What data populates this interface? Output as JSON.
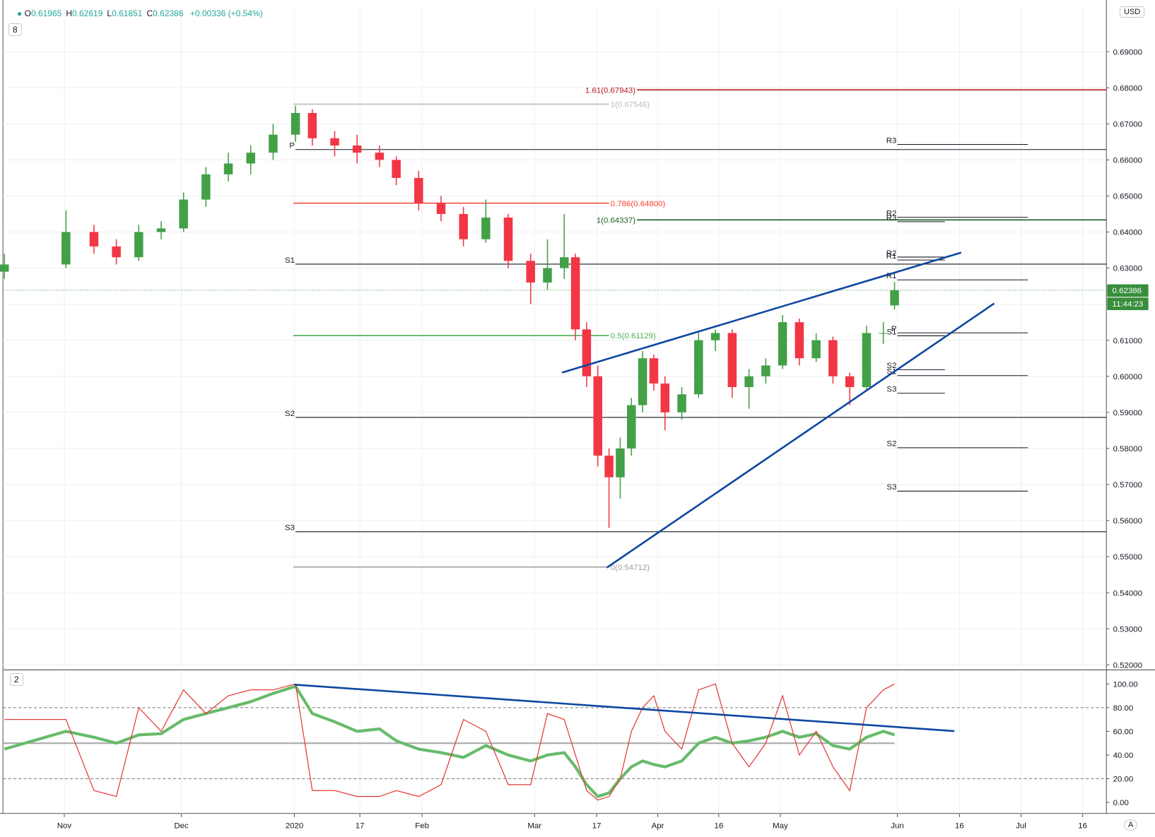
{
  "header": {
    "ohlc": [
      {
        "label": "O",
        "value": 0.61965
      },
      {
        "label": "H",
        "value": 0.62619
      },
      {
        "label": "L",
        "value": 0.61851
      },
      {
        "label": "C",
        "value": 0.62386
      }
    ],
    "change": "+0.00336 (+0.54%)",
    "main_badge": "8",
    "osc_badge": "2",
    "currency": "USD",
    "auto": "A"
  },
  "chart_data": [
    {
      "type": "candlestick",
      "x": [
        0,
        11,
        16,
        20,
        24,
        28,
        32,
        36,
        40,
        44,
        48,
        52,
        55,
        59,
        63,
        67,
        70,
        74,
        78,
        82,
        86,
        90,
        94,
        97,
        100,
        102,
        104,
        106,
        108,
        110,
        112,
        114,
        116,
        118,
        121,
        124,
        127,
        130,
        133,
        136,
        139,
        142,
        145,
        148,
        151,
        154,
        157,
        159
      ],
      "open": [
        0.629,
        0.631,
        0.64,
        0.636,
        0.633,
        0.64,
        0.641,
        0.649,
        0.656,
        0.659,
        0.662,
        0.667,
        0.673,
        0.666,
        0.664,
        0.662,
        0.66,
        0.655,
        0.648,
        0.645,
        0.638,
        0.644,
        0.632,
        0.626,
        0.63,
        0.633,
        0.613,
        0.6,
        0.578,
        0.572,
        0.58,
        0.592,
        0.605,
        0.598,
        0.59,
        0.595,
        0.61,
        0.612,
        0.597,
        0.6,
        0.603,
        0.615,
        0.605,
        0.61,
        0.6,
        0.597,
        0.612,
        0.61965
      ],
      "high": [
        0.634,
        0.646,
        0.642,
        0.638,
        0.642,
        0.643,
        0.651,
        0.658,
        0.662,
        0.664,
        0.67,
        0.675,
        0.674,
        0.668,
        0.667,
        0.664,
        0.661,
        0.657,
        0.65,
        0.647,
        0.649,
        0.645,
        0.634,
        0.638,
        0.645,
        0.634,
        0.615,
        0.603,
        0.58,
        0.583,
        0.594,
        0.607,
        0.606,
        0.6,
        0.597,
        0.612,
        0.613,
        0.613,
        0.602,
        0.605,
        0.617,
        0.616,
        0.612,
        0.611,
        0.601,
        0.614,
        0.615,
        0.62619
      ],
      "low": [
        0.627,
        0.63,
        0.634,
        0.631,
        0.632,
        0.638,
        0.64,
        0.647,
        0.654,
        0.656,
        0.66,
        0.665,
        0.664,
        0.661,
        0.659,
        0.658,
        0.653,
        0.646,
        0.643,
        0.636,
        0.637,
        0.63,
        0.62,
        0.624,
        0.627,
        0.61,
        0.597,
        0.575,
        0.558,
        0.566,
        0.578,
        0.59,
        0.596,
        0.585,
        0.588,
        0.594,
        0.607,
        0.594,
        0.591,
        0.598,
        0.602,
        0.603,
        0.604,
        0.598,
        0.592,
        0.596,
        0.609,
        0.61851
      ],
      "close": [
        0.631,
        0.64,
        0.636,
        0.633,
        0.64,
        0.641,
        0.649,
        0.656,
        0.659,
        0.662,
        0.667,
        0.673,
        0.666,
        0.664,
        0.662,
        0.66,
        0.655,
        0.648,
        0.645,
        0.638,
        0.644,
        0.632,
        0.626,
        0.63,
        0.633,
        0.613,
        0.6,
        0.578,
        0.572,
        0.58,
        0.592,
        0.605,
        0.598,
        0.59,
        0.595,
        0.61,
        0.612,
        0.597,
        0.6,
        0.603,
        0.615,
        0.605,
        0.61,
        0.6,
        0.597,
        0.612,
        0.612,
        0.62386
      ],
      "up_color": "#43a047",
      "down_color": "#f23645",
      "xlim": [
        -0.26,
        196.84
      ],
      "ylim": [
        0.519,
        0.7027
      ],
      "yticks": [
        {
          "value": 0.52,
          "label": "0.52000"
        },
        {
          "value": 0.53,
          "label": "0.53000"
        },
        {
          "value": 0.54,
          "label": "0.54000"
        },
        {
          "value": 0.55,
          "label": "0.55000"
        },
        {
          "value": 0.56,
          "label": "0.56000"
        },
        {
          "value": 0.57,
          "label": "0.57000"
        },
        {
          "value": 0.58,
          "label": "0.58000"
        },
        {
          "value": 0.59,
          "label": "0.59000"
        },
        {
          "value": 0.6,
          "label": "0.60000"
        },
        {
          "value": 0.61,
          "label": "0.61000"
        },
        {
          "value": 0.62,
          "label": "0.62000"
        },
        {
          "value": 0.63,
          "label": "0.63000"
        },
        {
          "value": 0.64,
          "label": "0.64000"
        },
        {
          "value": 0.65,
          "label": "0.65000"
        },
        {
          "value": 0.66,
          "label": "0.66000"
        },
        {
          "value": 0.67,
          "label": "0.67000"
        },
        {
          "value": 0.68,
          "label": "0.68000"
        },
        {
          "value": 0.69,
          "label": "0.69000"
        }
      ],
      "xticks": [
        {
          "value": 10.7,
          "label": "Nov"
        },
        {
          "value": 31.6,
          "label": "Dec"
        },
        {
          "value": 51.8,
          "label": "2020"
        },
        {
          "value": 63.5,
          "label": "17"
        },
        {
          "value": 74.6,
          "label": "Feb"
        },
        {
          "value": 94.7,
          "label": "Mar"
        },
        {
          "value": 105.8,
          "label": "17"
        },
        {
          "value": 116.7,
          "label": "Apr"
        },
        {
          "value": 127.6,
          "label": "16"
        },
        {
          "value": 138.6,
          "label": "May"
        },
        {
          "value": 159.5,
          "label": "Jun"
        },
        {
          "value": 170.6,
          "label": "16"
        },
        {
          "value": 181.6,
          "label": "Jul"
        },
        {
          "value": 192.6,
          "label": "16"
        }
      ],
      "grid": true,
      "last_price": 0.62386,
      "last_price_color": "#388e3c",
      "countdown": "11:44:23",
      "levels": [
        {
          "label": "1.61(0.67943)",
          "value": 0.67943,
          "from": 113,
          "to": 196.84,
          "color": "#b71c1c"
        },
        {
          "label": "1(0.67546)",
          "value": 0.67546,
          "from": 51.6,
          "to": 108,
          "color": "#bdbdbd"
        },
        {
          "label": "0.786(0.64800)",
          "value": 0.648,
          "from": 51.6,
          "to": 108,
          "color": "#f44336"
        },
        {
          "label": "1(0.64337)",
          "value": 0.64337,
          "from": 113,
          "to": 196.84,
          "color": "#1b5e20"
        },
        {
          "label": "0.5(0.61129)",
          "value": 0.61129,
          "from": 51.6,
          "to": 108,
          "color": "#4caf50"
        },
        {
          "label": "0(0.54712)",
          "value": 0.54712,
          "from": 51.6,
          "to": 108,
          "color": "#9e9e9e"
        }
      ],
      "pivots": [
        {
          "from": 52,
          "to": 196.84,
          "levels": [
            {
              "label": "P",
              "value": 0.66286
            },
            {
              "label": "S1",
              "value": 0.6311
            },
            {
              "label": "S2",
              "value": 0.5886
            },
            {
              "label": "S3",
              "value": 0.5569
            }
          ]
        },
        {
          "from": 159.5,
          "to": 182.8,
          "levels": [
            {
              "label": "R3",
              "value": 0.66429
            },
            {
              "label": "R2",
              "value": 0.64408
            },
            {
              "label": "R1",
              "value": 0.62673
            },
            {
              "label": "P",
              "value": 0.61204
            },
            {
              "label": "S1",
              "value": 0.6002
            },
            {
              "label": "S2",
              "value": 0.5802
            },
            {
              "label": "S3",
              "value": 0.56816
            }
          ]
        },
        {
          "from": 159.5,
          "to": 168,
          "levels": [
            {
              "label": "R3",
              "value": 0.64286
            },
            {
              "label": "R2",
              "value": 0.63306
            },
            {
              "label": "R1",
              "value": 0.63224
            },
            {
              "label": "S1",
              "value": 0.61122
            },
            {
              "label": "S2",
              "value": 0.60184
            },
            {
              "label": "S3",
              "value": 0.5953
            }
          ]
        }
      ],
      "pivot_color": "#131722",
      "trendlines": [
        {
          "x": [
            99.6,
            170.9
          ],
          "y": [
            0.60102,
            0.63429
          ],
          "color": "#0d47a1"
        },
        {
          "x": [
            107.6,
            176.8
          ],
          "y": [
            0.54694,
            0.6202
          ],
          "color": "#0d47a1"
        }
      ]
    },
    {
      "type": "line",
      "x": [
        0,
        11,
        16,
        20,
        24,
        28,
        32,
        36,
        40,
        44,
        48,
        52,
        55,
        59,
        63,
        67,
        70,
        74,
        78,
        82,
        86,
        90,
        94,
        97,
        100,
        102,
        104,
        106,
        108,
        110,
        112,
        114,
        116,
        118,
        121,
        124,
        127,
        130,
        133,
        136,
        139,
        142,
        145,
        148,
        151,
        154,
        157,
        159
      ],
      "ylim": [
        -9.3,
        110.6
      ],
      "yticks": [
        {
          "value": 0,
          "label": "0.00"
        },
        {
          "value": 20,
          "label": "20.00"
        },
        {
          "value": 40,
          "label": "40.00"
        },
        {
          "value": 60,
          "label": "60.00"
        },
        {
          "value": 80,
          "label": "80.00"
        },
        {
          "value": 100,
          "label": "100.00"
        }
      ],
      "series": [
        {
          "color": "#66bb6a",
          "width": 4,
          "values": [
            45,
            60,
            55,
            50,
            57,
            58,
            70,
            75,
            80,
            85,
            92,
            98,
            75,
            68,
            60,
            62,
            52,
            45,
            42,
            38,
            48,
            40,
            35,
            40,
            42,
            30,
            15,
            5,
            8,
            20,
            30,
            35,
            32,
            30,
            35,
            50,
            55,
            50,
            52,
            55,
            60,
            55,
            58,
            48,
            45,
            55,
            60,
            57
          ]
        },
        {
          "color": "#e53935",
          "width": 1.2,
          "values": [
            70,
            70,
            10,
            5,
            80,
            60,
            95,
            75,
            90,
            95,
            95,
            100,
            10,
            10,
            5,
            5,
            10,
            5,
            15,
            70,
            60,
            15,
            15,
            75,
            70,
            40,
            10,
            2,
            5,
            20,
            60,
            80,
            90,
            60,
            45,
            95,
            100,
            50,
            30,
            50,
            90,
            40,
            60,
            30,
            10,
            80,
            95,
            100
          ]
        }
      ],
      "levels": [
        80,
        20
      ],
      "midline": 50,
      "trendline": {
        "x": [
          51.8,
          169.7
        ],
        "y": [
          99.4,
          60.2
        ],
        "color": "#0d47a1"
      }
    }
  ]
}
